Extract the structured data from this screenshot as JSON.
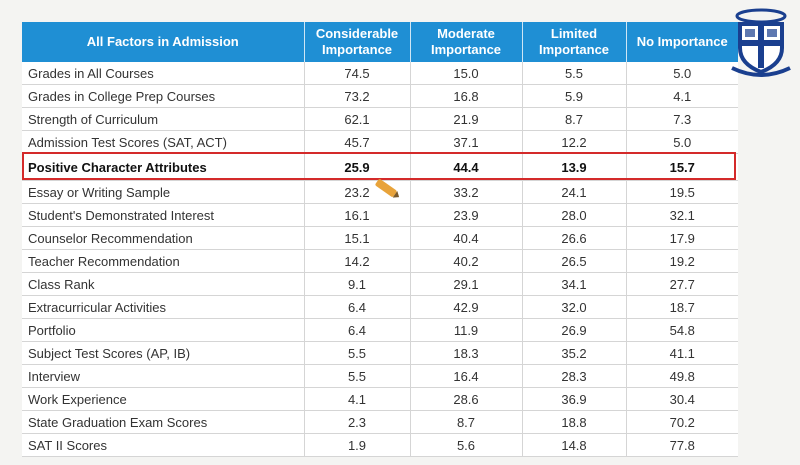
{
  "table": {
    "headers": [
      "All Factors in Admission",
      "Considerable Importance",
      "Moderate Importance",
      "Limited Importance",
      "No Importance"
    ],
    "rows": [
      [
        "Grades in All Courses",
        "74.5",
        "15.0",
        "5.5",
        "5.0"
      ],
      [
        "Grades in College Prep Courses",
        "73.2",
        "16.8",
        "5.9",
        "4.1"
      ],
      [
        "Strength of Curriculum",
        "62.1",
        "21.9",
        "8.7",
        "7.3"
      ],
      [
        "Admission Test Scores (SAT, ACT)",
        "45.7",
        "37.1",
        "12.2",
        "5.0"
      ],
      [
        "Positive Character Attributes",
        "25.9",
        "44.4",
        "13.9",
        "15.7"
      ],
      [
        "Essay or Writing Sample",
        "23.2",
        "33.2",
        "24.1",
        "19.5"
      ],
      [
        "Student's Demonstrated Interest",
        "16.1",
        "23.9",
        "28.0",
        "32.1"
      ],
      [
        "Counselor Recommendation",
        "15.1",
        "40.4",
        "26.6",
        "17.9"
      ],
      [
        "Teacher Recommendation",
        "14.2",
        "40.2",
        "26.5",
        "19.2"
      ],
      [
        "Class Rank",
        "9.1",
        "29.1",
        "34.1",
        "27.7"
      ],
      [
        "Extracurricular Activities",
        "6.4",
        "42.9",
        "32.0",
        "18.7"
      ],
      [
        "Portfolio",
        "6.4",
        "11.9",
        "26.9",
        "54.8"
      ],
      [
        "Subject Test Scores (AP, IB)",
        "5.5",
        "18.3",
        "35.2",
        "41.1"
      ],
      [
        "Interview",
        "5.5",
        "16.4",
        "28.3",
        "49.8"
      ],
      [
        "Work Experience",
        "4.1",
        "28.6",
        "36.9",
        "30.4"
      ],
      [
        "State Graduation Exam Scores",
        "2.3",
        "8.7",
        "18.8",
        "70.2"
      ],
      [
        "SAT II Scores",
        "1.9",
        "5.6",
        "14.8",
        "77.8"
      ]
    ],
    "highlighted_row_index": 4
  },
  "colors": {
    "header_bg": "#1f8fd4",
    "highlight_border": "#d42a2a",
    "seal_blue": "#1a3f8f"
  },
  "icons": {
    "pencil": "pencil-icon",
    "seal": "university-seal-icon"
  }
}
